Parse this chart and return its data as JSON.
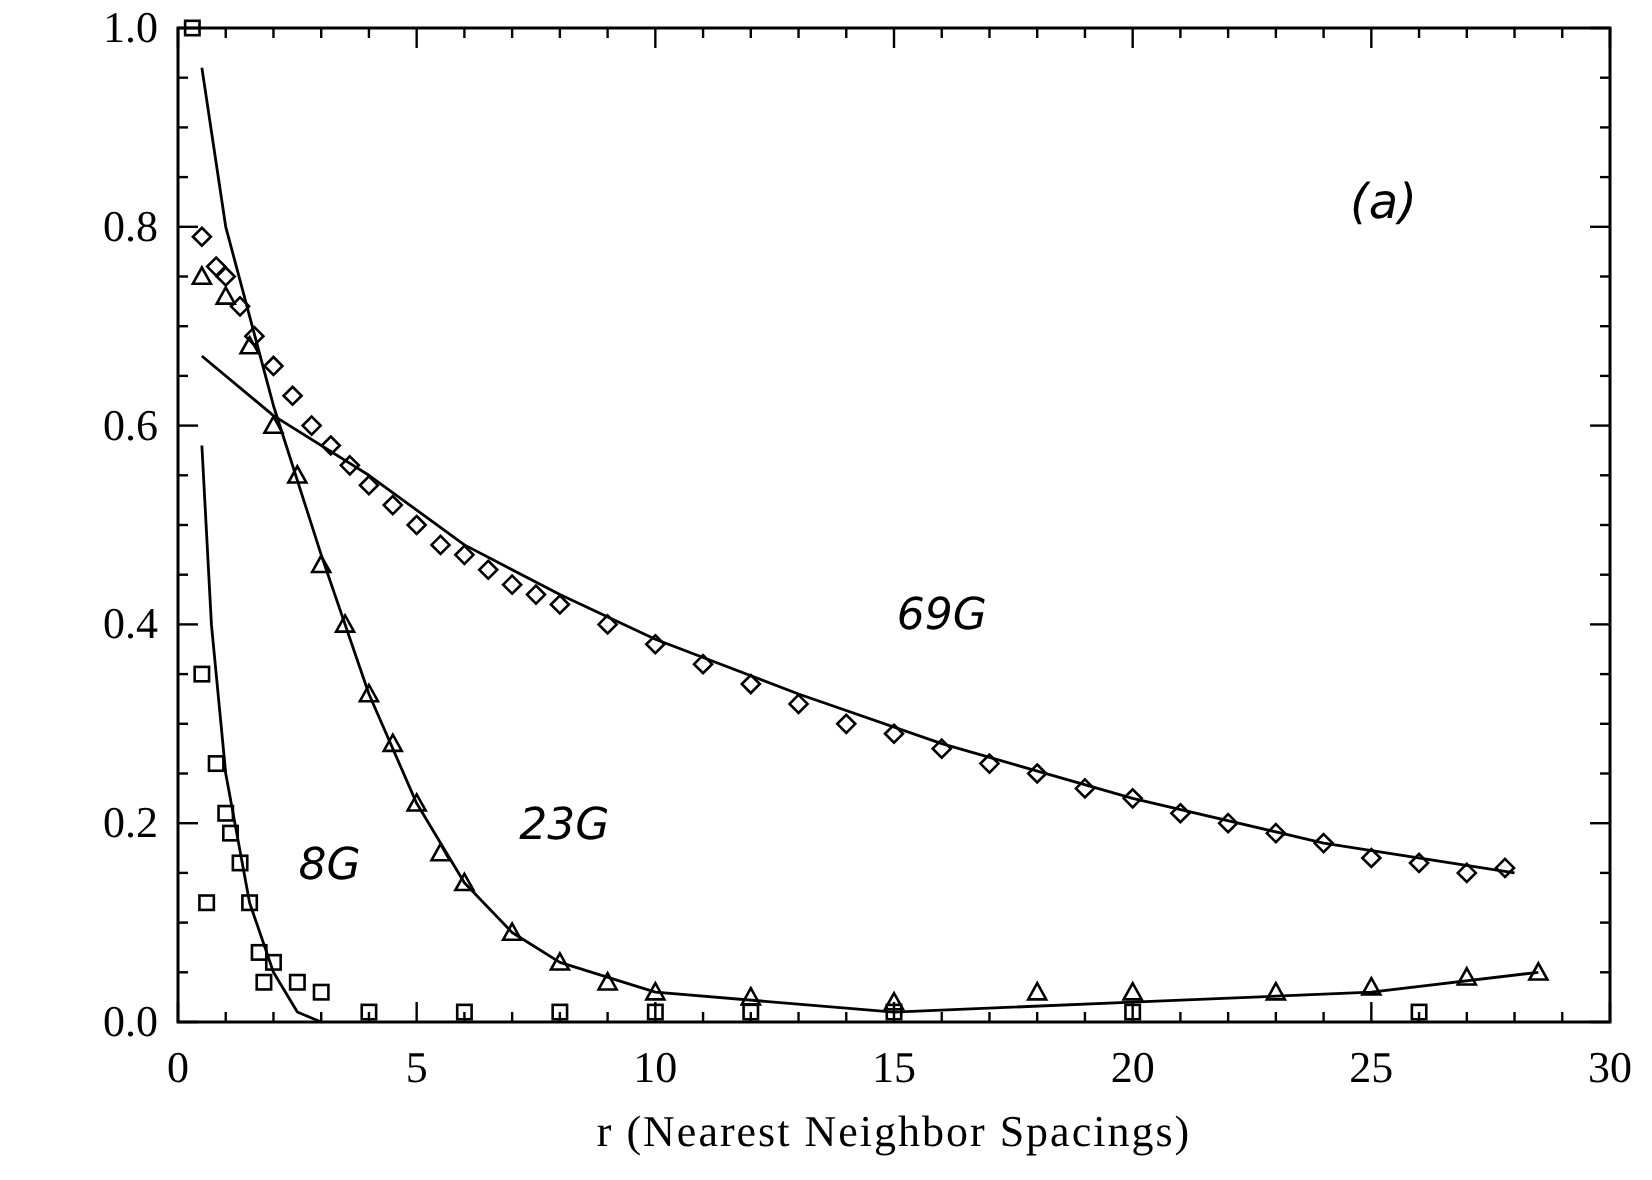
{
  "chart_data": {
    "type": "scatter",
    "xlabel": "r (Nearest Neighbor Spacings)",
    "xlim": [
      0,
      30
    ],
    "ylim": [
      0,
      1.0
    ],
    "xticks": [
      0,
      {
        "value": 1,
        "label": null
      },
      {
        "value": 2,
        "label": null
      },
      {
        "value": 3,
        "label": null
      },
      {
        "value": 4,
        "label": null
      },
      5,
      {
        "value": 6,
        "label": null
      },
      {
        "value": 7,
        "label": null
      },
      {
        "value": 8,
        "label": null
      },
      {
        "value": 9,
        "label": null
      },
      10,
      {
        "value": 11,
        "label": null
      },
      {
        "value": 12,
        "label": null
      },
      {
        "value": 13,
        "label": null
      },
      {
        "value": 14,
        "label": null
      },
      15,
      {
        "value": 16,
        "label": null
      },
      {
        "value": 17,
        "label": null
      },
      {
        "value": 18,
        "label": null
      },
      {
        "value": 19,
        "label": null
      },
      20,
      {
        "value": 21,
        "label": null
      },
      {
        "value": 22,
        "label": null
      },
      {
        "value": 23,
        "label": null
      },
      {
        "value": 24,
        "label": null
      },
      25,
      {
        "value": 26,
        "label": null
      },
      {
        "value": 27,
        "label": null
      },
      {
        "value": 28,
        "label": null
      },
      {
        "value": 29,
        "label": null
      },
      30
    ],
    "yticks": [
      {
        "value": 0,
        "label": "0.0"
      },
      {
        "value": 0.05,
        "label": null
      },
      {
        "value": 0.1,
        "label": null
      },
      {
        "value": 0.15,
        "label": null
      },
      0.2,
      {
        "value": 0.25,
        "label": null
      },
      {
        "value": 0.3,
        "label": null
      },
      {
        "value": 0.35,
        "label": null
      },
      0.4,
      {
        "value": 0.45,
        "label": null
      },
      {
        "value": 0.5,
        "label": null
      },
      {
        "value": 0.55,
        "label": null
      },
      0.6,
      {
        "value": 0.65,
        "label": null
      },
      {
        "value": 0.7,
        "label": null
      },
      {
        "value": 0.75,
        "label": null
      },
      0.8,
      {
        "value": 0.85,
        "label": null
      },
      {
        "value": 0.9,
        "label": null
      },
      {
        "value": 0.95,
        "label": null
      },
      {
        "value": 1.0,
        "label": "1.0"
      }
    ],
    "grid": false,
    "legend": false,
    "series": [
      {
        "name": "69G",
        "marker": "diamond",
        "color": "#000000",
        "x": [
          0.5,
          0.8,
          1,
          1.3,
          1.6,
          2,
          2.4,
          2.8,
          3.2,
          3.6,
          4,
          4.5,
          5,
          5.5,
          6,
          6.5,
          7,
          7.5,
          8,
          9,
          10,
          11,
          12,
          13,
          14,
          15,
          16,
          17,
          18,
          19,
          20,
          21,
          22,
          23,
          24,
          25,
          26,
          27,
          27.8
        ],
        "values": [
          0.79,
          0.76,
          0.75,
          0.72,
          0.69,
          0.66,
          0.63,
          0.6,
          0.58,
          0.56,
          0.54,
          0.52,
          0.5,
          0.48,
          0.47,
          0.455,
          0.44,
          0.43,
          0.42,
          0.4,
          0.38,
          0.36,
          0.34,
          0.32,
          0.3,
          0.29,
          0.275,
          0.26,
          0.25,
          0.235,
          0.225,
          0.21,
          0.2,
          0.19,
          0.18,
          0.165,
          0.16,
          0.15,
          0.155
        ]
      },
      {
        "name": "23G",
        "marker": "triangle",
        "color": "#000000",
        "x": [
          0.5,
          1,
          1.5,
          2,
          2.5,
          3,
          3.5,
          4,
          4.5,
          5,
          5.5,
          6,
          7,
          8,
          9,
          10,
          12,
          15,
          18,
          20,
          23,
          25,
          27,
          28.5
        ],
        "values": [
          0.75,
          0.73,
          0.68,
          0.6,
          0.55,
          0.46,
          0.4,
          0.33,
          0.28,
          0.22,
          0.17,
          0.14,
          0.09,
          0.06,
          0.04,
          0.03,
          0.025,
          0.02,
          0.03,
          0.03,
          0.03,
          0.035,
          0.045,
          0.05
        ]
      },
      {
        "name": "8G",
        "marker": "square",
        "color": "#000000",
        "x": [
          0.3,
          0.5,
          0.6,
          0.8,
          1,
          1.1,
          1.3,
          1.5,
          1.7,
          1.8,
          2,
          2.5,
          3,
          4,
          6,
          8,
          10,
          12,
          15,
          20,
          26
        ],
        "values": [
          1.0,
          0.35,
          0.12,
          0.26,
          0.21,
          0.19,
          0.16,
          0.12,
          0.07,
          0.04,
          0.06,
          0.04,
          0.03,
          0.01,
          0.01,
          0.01,
          0.01,
          0.01,
          0.01,
          0.01,
          0.01
        ]
      },
      {
        "type": "line",
        "line_style": "solid",
        "color": "#000000",
        "x": [
          0.5,
          2,
          4,
          6,
          8,
          10,
          13,
          16,
          20,
          24,
          28
        ],
        "values": [
          0.67,
          0.61,
          0.55,
          0.48,
          0.43,
          0.385,
          0.33,
          0.28,
          0.225,
          0.18,
          0.15
        ]
      },
      {
        "type": "line",
        "line_style": "solid",
        "color": "#000000",
        "x": [
          0.5,
          1,
          2,
          3,
          4,
          5,
          6,
          7,
          8,
          10,
          15,
          20,
          25,
          28.5
        ],
        "values": [
          0.96,
          0.8,
          0.62,
          0.47,
          0.33,
          0.22,
          0.14,
          0.09,
          0.06,
          0.03,
          0.01,
          0.02,
          0.03,
          0.05
        ]
      },
      {
        "type": "line",
        "line_style": "solid",
        "color": "#000000",
        "x": [
          0.5,
          0.7,
          1,
          1.5,
          2,
          2.5,
          3
        ],
        "values": [
          0.58,
          0.4,
          0.25,
          0.12,
          0.05,
          0.01,
          0.0
        ]
      }
    ],
    "annotations": [
      "(a)"
    ]
  }
}
